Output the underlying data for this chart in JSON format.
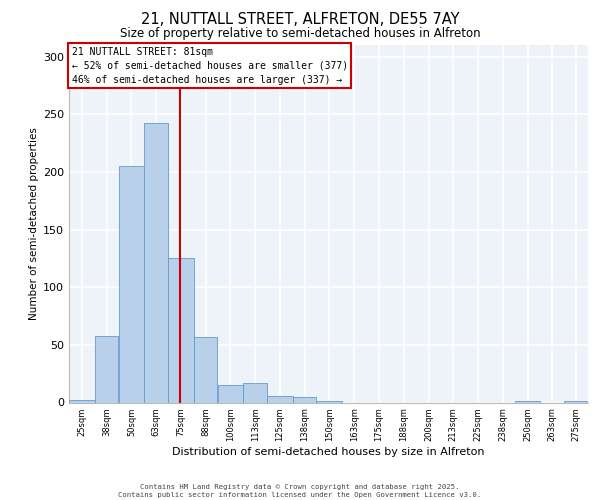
{
  "title_line1": "21, NUTTALL STREET, ALFRETON, DE55 7AY",
  "title_line2": "Size of property relative to semi-detached houses in Alfreton",
  "xlabel": "Distribution of semi-detached houses by size in Alfreton",
  "ylabel": "Number of semi-detached properties",
  "bar_color": "#b8d0ea",
  "bar_edge_color": "#6699cc",
  "background_color": "#eef2f9",
  "grid_color": "white",
  "bins": [
    25,
    38,
    50,
    63,
    75,
    88,
    100,
    113,
    125,
    138,
    150,
    163,
    175,
    188,
    200,
    213,
    225,
    238,
    250,
    263,
    275
  ],
  "bin_labels": [
    "25sqm",
    "38sqm",
    "50sqm",
    "63sqm",
    "75sqm",
    "88sqm",
    "100sqm",
    "113sqm",
    "125sqm",
    "138sqm",
    "150sqm",
    "163sqm",
    "175sqm",
    "188sqm",
    "200sqm",
    "213sqm",
    "225sqm",
    "238sqm",
    "250sqm",
    "263sqm",
    "275sqm"
  ],
  "counts": [
    2,
    58,
    205,
    242,
    125,
    57,
    15,
    17,
    6,
    5,
    1,
    0,
    0,
    0,
    0,
    0,
    0,
    0,
    1,
    0,
    1
  ],
  "property_size": 81,
  "annotation_title": "21 NUTTALL STREET: 81sqm",
  "annotation_line2": "← 52% of semi-detached houses are smaller (377)",
  "annotation_line3": "46% of semi-detached houses are larger (337) →",
  "vline_color": "#cc0000",
  "annotation_box_edge_color": "#cc0000",
  "ylim": [
    0,
    310
  ],
  "yticks": [
    0,
    50,
    100,
    150,
    200,
    250,
    300
  ],
  "footer_line1": "Contains HM Land Registry data © Crown copyright and database right 2025.",
  "footer_line2": "Contains public sector information licensed under the Open Government Licence v3.0."
}
